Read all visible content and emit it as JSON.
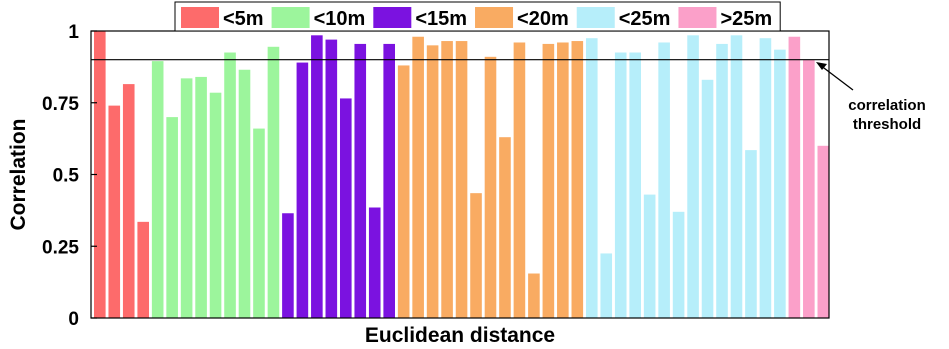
{
  "chart_data": {
    "type": "bar",
    "xlabel": "Euclidean distance",
    "ylabel": "Correlation",
    "ylim": [
      0,
      1
    ],
    "yticks": [
      0,
      0.25,
      0.5,
      0.75,
      1
    ],
    "ytick_labels": [
      "0",
      "0.25",
      "0.5",
      "0.75",
      "1"
    ],
    "grid": false,
    "legend_placement": "top",
    "threshold": {
      "value": 0.9,
      "label_line1": "correlation",
      "label_line2": "threshold"
    },
    "series": [
      {
        "name": "<5m",
        "color": "#fd6b6b",
        "values": [
          1.0,
          0.74,
          0.815,
          0.335
        ]
      },
      {
        "name": "<10m",
        "color": "#9cf59c",
        "values": [
          0.895,
          0.7,
          0.835,
          0.84,
          0.785,
          0.925,
          0.865,
          0.66,
          0.945
        ]
      },
      {
        "name": "<15m",
        "color": "#7b12e0",
        "values": [
          0.365,
          0.89,
          0.985,
          0.97,
          0.765,
          0.955,
          0.385,
          0.955
        ]
      },
      {
        "name": "<20m",
        "color": "#f9ab62",
        "values": [
          0.88,
          0.98,
          0.95,
          0.965,
          0.965,
          0.435,
          0.91,
          0.63,
          0.96,
          0.155,
          0.955,
          0.96,
          0.965
        ]
      },
      {
        "name": "<25m",
        "color": "#b6eefa",
        "values": [
          0.975,
          0.225,
          0.925,
          0.925,
          0.43,
          0.96,
          0.37,
          0.985,
          0.83,
          0.955,
          0.985,
          0.585,
          0.975,
          0.935
        ]
      },
      {
        "name": ">25m",
        "color": "#fba0c9",
        "values": [
          0.98,
          0.9,
          0.6
        ]
      }
    ]
  }
}
